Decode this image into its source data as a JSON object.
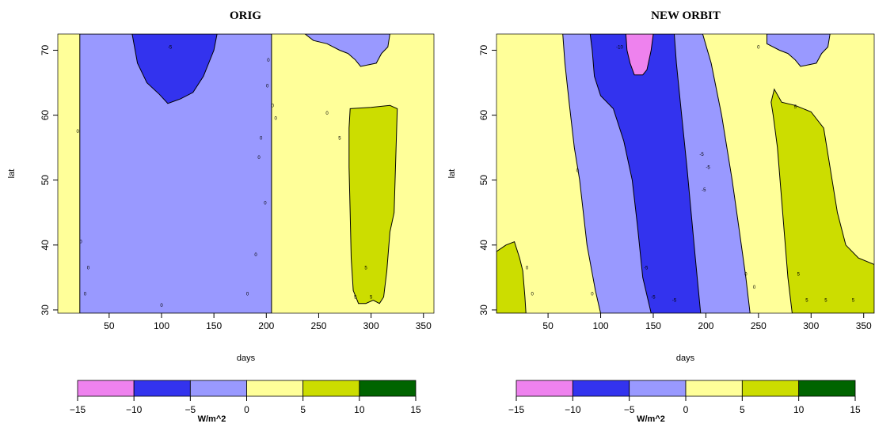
{
  "chart_data": [
    {
      "type": "heatmap",
      "title": "ORIG",
      "xlabel": "days",
      "ylabel": "lat",
      "xlim": [
        1,
        360
      ],
      "ylim": [
        29.5,
        72.5
      ],
      "xticks": [
        50,
        100,
        150,
        200,
        250,
        300,
        350
      ],
      "yticks": [
        30,
        40,
        50,
        60,
        70
      ],
      "regions": [
        {
          "level": "0 to 5",
          "color": "#FFFF99",
          "polygon": [
            [
              1,
              29.5
            ],
            [
              360,
              29.5
            ],
            [
              360,
              72.5
            ],
            [
              1,
              72.5
            ]
          ]
        },
        {
          "level": "-5 to 0",
          "color": "#9999FF",
          "polygon": [
            [
              22,
              29.5
            ],
            [
              205,
              29.5
            ],
            [
              205,
              72.5
            ],
            [
              22,
              72.5
            ]
          ]
        },
        {
          "level": "-10 to -5",
          "color": "#3333EE",
          "polygon": [
            [
              72,
              72.5
            ],
            [
              77,
              68
            ],
            [
              86,
              65
            ],
            [
              98,
              63.2
            ],
            [
              106,
              61.8
            ],
            [
              118,
              62.5
            ],
            [
              130,
              63.5
            ],
            [
              140,
              66
            ],
            [
              150,
              70
            ],
            [
              153,
              72.5
            ]
          ]
        },
        {
          "level": "-5 to 0",
          "color": "#9999FF",
          "polygon": [
            [
              237,
              72.5
            ],
            [
              318,
              72.5
            ],
            [
              316,
              70.5
            ],
            [
              310,
              69.5
            ],
            [
              305,
              68
            ],
            [
              290,
              67.5
            ],
            [
              285,
              68.5
            ],
            [
              278,
              69.5
            ],
            [
              270,
              70
            ],
            [
              258,
              71
            ],
            [
              245,
              71.5
            ]
          ]
        },
        {
          "level": "5 to 10",
          "color": "#CCDD00",
          "polygon": [
            [
              280,
              61
            ],
            [
              300,
              61.2
            ],
            [
              318,
              61.5
            ],
            [
              325,
              61
            ],
            [
              322,
              45
            ],
            [
              318,
              42
            ],
            [
              315,
              36
            ],
            [
              312,
              32
            ],
            [
              308,
              31
            ],
            [
              302,
              31.5
            ],
            [
              295,
              31
            ],
            [
              288,
              31
            ],
            [
              283,
              33
            ],
            [
              281,
              38
            ],
            [
              280,
              45
            ],
            [
              279,
              52
            ],
            [
              279,
              58
            ]
          ]
        }
      ],
      "contour_labels": [
        {
          "x": 20,
          "y": 57.5,
          "text": "0"
        },
        {
          "x": 23,
          "y": 40.5,
          "text": "0"
        },
        {
          "x": 27,
          "y": 32.5,
          "text": "0"
        },
        {
          "x": 30,
          "y": 36.5,
          "text": "0"
        },
        {
          "x": 100,
          "y": 30.7,
          "text": "0"
        },
        {
          "x": 108,
          "y": 70.5,
          "text": "-5"
        },
        {
          "x": 182,
          "y": 32.5,
          "text": "0"
        },
        {
          "x": 190,
          "y": 38.5,
          "text": "0"
        },
        {
          "x": 193,
          "y": 53.5,
          "text": "0"
        },
        {
          "x": 195,
          "y": 56.5,
          "text": "0"
        },
        {
          "x": 199,
          "y": 46.5,
          "text": "0"
        },
        {
          "x": 201,
          "y": 64.5,
          "text": "0"
        },
        {
          "x": 202,
          "y": 68.5,
          "text": "0"
        },
        {
          "x": 206,
          "y": 61.5,
          "text": "0"
        },
        {
          "x": 209,
          "y": 59.5,
          "text": "0"
        },
        {
          "x": 258,
          "y": 60.3,
          "text": "0"
        },
        {
          "x": 270,
          "y": 56.5,
          "text": "5"
        },
        {
          "x": 285,
          "y": 32,
          "text": "5"
        },
        {
          "x": 295,
          "y": 36.5,
          "text": "5"
        },
        {
          "x": 300,
          "y": 32,
          "text": "5"
        }
      ],
      "legend": {
        "label": "W/m^2",
        "breaks": [
          -15,
          -10,
          -5,
          0,
          5,
          10,
          15
        ],
        "colors": [
          "#EE82EE",
          "#3333EE",
          "#9999FF",
          "#FFFF99",
          "#CCDD00",
          "#006400"
        ]
      }
    },
    {
      "type": "heatmap",
      "title": "NEW ORBIT",
      "xlabel": "days",
      "ylabel": "lat",
      "xlim": [
        1,
        360
      ],
      "ylim": [
        29.5,
        72.5
      ],
      "xticks": [
        50,
        100,
        150,
        200,
        250,
        300,
        350
      ],
      "yticks": [
        30,
        40,
        50,
        60,
        70
      ],
      "regions": [
        {
          "level": "0 to 5",
          "color": "#FFFF99",
          "polygon": [
            [
              1,
              29.5
            ],
            [
              360,
              29.5
            ],
            [
              360,
              72.5
            ],
            [
              1,
              72.5
            ]
          ]
        },
        {
          "level": "-5 to 0",
          "color": "#9999FF",
          "polygon": [
            [
              64,
              72.5
            ],
            [
              197,
              72.5
            ],
            [
              205,
              68
            ],
            [
              215,
              60
            ],
            [
              225,
              50
            ],
            [
              232,
              42
            ],
            [
              238,
              35
            ],
            [
              242,
              29.5
            ],
            [
              100,
              29.5
            ],
            [
              95,
              33
            ],
            [
              87,
              40
            ],
            [
              80,
              50
            ],
            [
              75,
              55
            ],
            [
              70,
              62
            ],
            [
              66,
              68
            ]
          ]
        },
        {
          "level": "-10 to -5",
          "color": "#3333EE",
          "polygon": [
            [
              90,
              72.5
            ],
            [
              170,
              72.5
            ],
            [
              172,
              68
            ],
            [
              177,
              60
            ],
            [
              182,
              52
            ],
            [
              186,
              45
            ],
            [
              190,
              38
            ],
            [
              195,
              29.5
            ],
            [
              148,
              29.5
            ],
            [
              140,
              35
            ],
            [
              135,
              43
            ],
            [
              130,
              50
            ],
            [
              122,
              56
            ],
            [
              112,
              61
            ],
            [
              100,
              63
            ],
            [
              94,
              66
            ],
            [
              92,
              70
            ]
          ]
        },
        {
          "level": "-15 to -10",
          "color": "#EE82EE",
          "polygon": [
            [
              124,
              72.5
            ],
            [
              150,
              72.5
            ],
            [
              148,
              70
            ],
            [
              144,
              67
            ],
            [
              140,
              66.2
            ],
            [
              132,
              66.2
            ],
            [
              128,
              68
            ],
            [
              125,
              70
            ]
          ]
        },
        {
          "level": "-5 to 0",
          "color": "#9999FF",
          "polygon": [
            [
              258,
              72.5
            ],
            [
              318,
              72.5
            ],
            [
              316,
              70.5
            ],
            [
              310,
              69.5
            ],
            [
              305,
              68
            ],
            [
              290,
              67.5
            ],
            [
              285,
              68.5
            ],
            [
              278,
              69.5
            ],
            [
              270,
              70
            ],
            [
              258,
              71
            ]
          ]
        },
        {
          "level": "5 to 10",
          "color": "#CCDD00",
          "polygon": [
            [
              262,
              62
            ],
            [
              265,
              64
            ],
            [
              272,
              62
            ],
            [
              285,
              61.5
            ],
            [
              300,
              60.5
            ],
            [
              312,
              58
            ],
            [
              318,
              52
            ],
            [
              325,
              45
            ],
            [
              333,
              40
            ],
            [
              345,
              38
            ],
            [
              360,
              37
            ],
            [
              360,
              29.5
            ],
            [
              282,
              29.5
            ],
            [
              278,
              35
            ],
            [
              273,
              45
            ],
            [
              268,
              55
            ],
            [
              264,
              60
            ]
          ]
        },
        {
          "level": "5 to 10",
          "color": "#CCDD00",
          "polygon": [
            [
              1,
              39
            ],
            [
              10,
              40
            ],
            [
              18,
              40.5
            ],
            [
              23,
              38
            ],
            [
              26,
              36
            ],
            [
              28,
              32
            ],
            [
              29,
              29.5
            ],
            [
              1,
              29.5
            ]
          ]
        }
      ],
      "contour_labels": [
        {
          "x": 30,
          "y": 36.5,
          "text": "0"
        },
        {
          "x": 35,
          "y": 32.5,
          "text": "0"
        },
        {
          "x": 78,
          "y": 51.5,
          "text": "0"
        },
        {
          "x": 92,
          "y": 32.5,
          "text": "0"
        },
        {
          "x": 118,
          "y": 70.5,
          "text": "-10"
        },
        {
          "x": 143,
          "y": 36.5,
          "text": "-5"
        },
        {
          "x": 150,
          "y": 32,
          "text": "-5"
        },
        {
          "x": 170,
          "y": 31.5,
          "text": "-5"
        },
        {
          "x": 196,
          "y": 54,
          "text": "-5"
        },
        {
          "x": 198,
          "y": 48.5,
          "text": "-5"
        },
        {
          "x": 202,
          "y": 52,
          "text": "-5"
        },
        {
          "x": 238,
          "y": 35.5,
          "text": "0"
        },
        {
          "x": 246,
          "y": 33.5,
          "text": "0"
        },
        {
          "x": 250,
          "y": 70.5,
          "text": "0"
        },
        {
          "x": 285,
          "y": 61.3,
          "text": "5"
        },
        {
          "x": 288,
          "y": 35.5,
          "text": "5"
        },
        {
          "x": 296,
          "y": 31.5,
          "text": "5"
        },
        {
          "x": 314,
          "y": 31.5,
          "text": "5"
        },
        {
          "x": 340,
          "y": 31.5,
          "text": "5"
        }
      ],
      "legend": {
        "label": "W/m^2",
        "breaks": [
          -15,
          -10,
          -5,
          0,
          5,
          10,
          15
        ],
        "colors": [
          "#EE82EE",
          "#3333EE",
          "#9999FF",
          "#FFFF99",
          "#CCDD00",
          "#006400"
        ]
      }
    }
  ]
}
